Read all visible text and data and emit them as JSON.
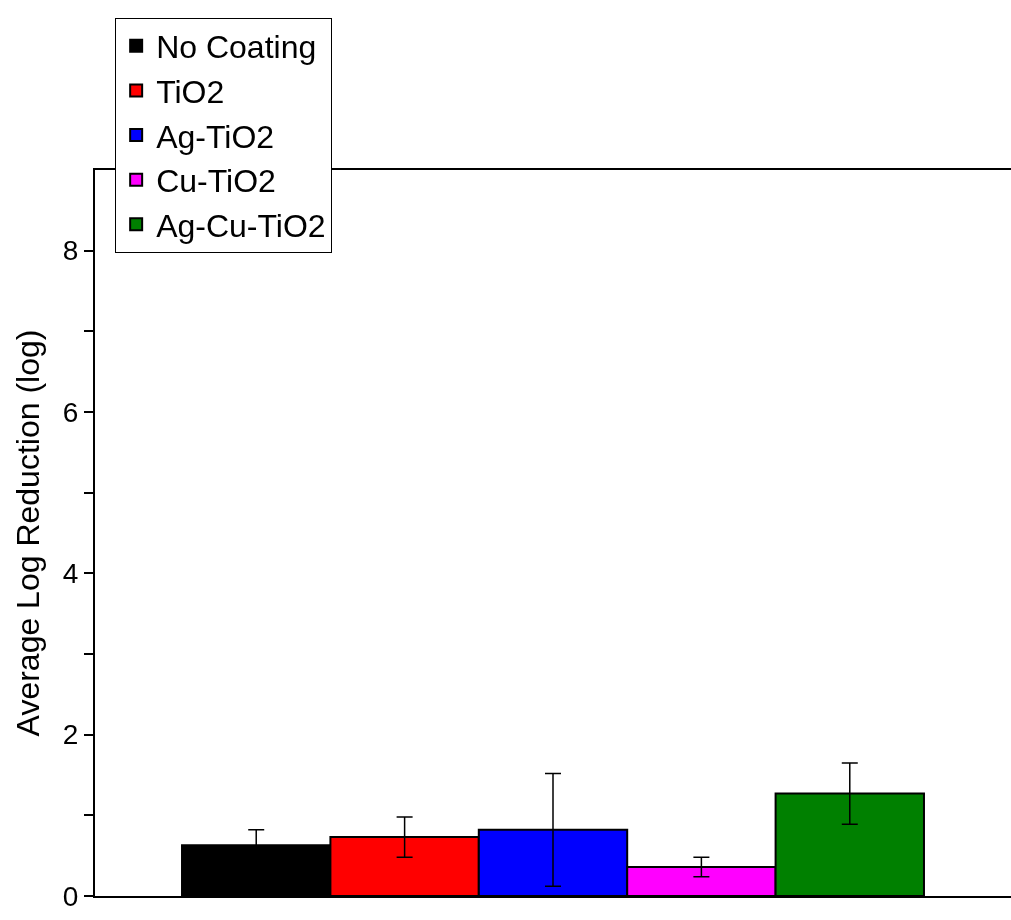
{
  "chart_data": {
    "type": "bar",
    "ylabel": "Average Log Reduction (log)",
    "categories": [
      null
    ],
    "series": [
      {
        "name": "No Coating",
        "color": "#000000",
        "values": [
          0.63
        ],
        "errors": [
          0.19
        ]
      },
      {
        "name": "TiO2",
        "color": "#ff0000",
        "values": [
          0.73
        ],
        "errors": [
          0.25
        ]
      },
      {
        "name": "Ag-TiO2",
        "color": "#0000ff",
        "values": [
          0.82
        ],
        "errors": [
          0.7
        ]
      },
      {
        "name": "Cu-TiO2",
        "color": "#ff00ff",
        "values": [
          0.36
        ],
        "errors": [
          0.12
        ]
      },
      {
        "name": "Ag-Cu-TiO2",
        "color": "#008000",
        "values": [
          1.27
        ],
        "errors": [
          0.38
        ]
      }
    ],
    "ylim": [
      0,
      9
    ],
    "yticks": [
      0,
      {
        "value": 1,
        "label": null
      },
      2,
      {
        "value": 3,
        "label": null
      },
      4,
      {
        "value": 5,
        "label": null
      },
      6,
      {
        "value": 7,
        "label": null
      },
      8
    ],
    "grid": false,
    "legend": "top left",
    "tick_labels": "y"
  }
}
